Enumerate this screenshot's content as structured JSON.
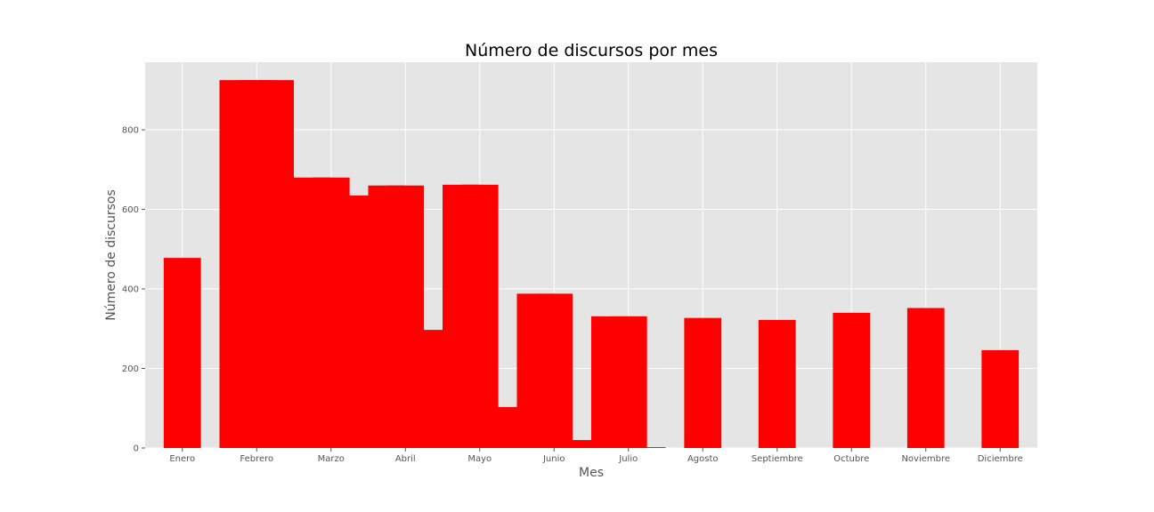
{
  "chart_data": {
    "type": "bar",
    "title": "Número de discursos por mes",
    "xlabel": "Mes",
    "ylabel": "Número de discursos",
    "categories": [
      "Enero",
      "Febrero",
      "Marzo",
      "Abril",
      "Mayo",
      "Junio",
      "Julio",
      "Agosto",
      "Septiembre",
      "Octubre",
      "Noviembre",
      "Diciembre"
    ],
    "yticks": [
      0,
      200,
      400,
      600,
      800
    ],
    "ylim": [
      0,
      970
    ],
    "grid": true,
    "bars": [
      {
        "x": 0.0,
        "value": 478
      },
      {
        "x": 0.75,
        "value": 925
      },
      {
        "x": 1.0,
        "value": 925
      },
      {
        "x": 1.25,
        "value": 925
      },
      {
        "x": 1.5,
        "value": 635
      },
      {
        "x": 1.75,
        "value": 680
      },
      {
        "x": 2.0,
        "value": 680
      },
      {
        "x": 2.25,
        "value": 635
      },
      {
        "x": 2.5,
        "value": 297
      },
      {
        "x": 2.75,
        "value": 660
      },
      {
        "x": 3.0,
        "value": 660
      },
      {
        "x": 3.25,
        "value": 297
      },
      {
        "x": 3.5,
        "value": 103
      },
      {
        "x": 3.75,
        "value": 662
      },
      {
        "x": 4.0,
        "value": 662
      },
      {
        "x": 4.25,
        "value": 103
      },
      {
        "x": 4.5,
        "value": 20
      },
      {
        "x": 4.75,
        "value": 388
      },
      {
        "x": 5.0,
        "value": 388
      },
      {
        "x": 5.25,
        "value": 20
      },
      {
        "x": 5.5,
        "value": 2
      },
      {
        "x": 5.75,
        "value": 331
      },
      {
        "x": 6.0,
        "value": 331
      },
      {
        "x": 6.25,
        "value": 2
      },
      {
        "x": 7.0,
        "value": 327
      },
      {
        "x": 8.0,
        "value": 322
      },
      {
        "x": 9.0,
        "value": 340
      },
      {
        "x": 10.0,
        "value": 352
      },
      {
        "x": 11.0,
        "value": 246
      }
    ],
    "colors": {
      "bar": "#ff0000",
      "plot_bg": "#e5e5e5",
      "grid": "#ffffff"
    }
  }
}
